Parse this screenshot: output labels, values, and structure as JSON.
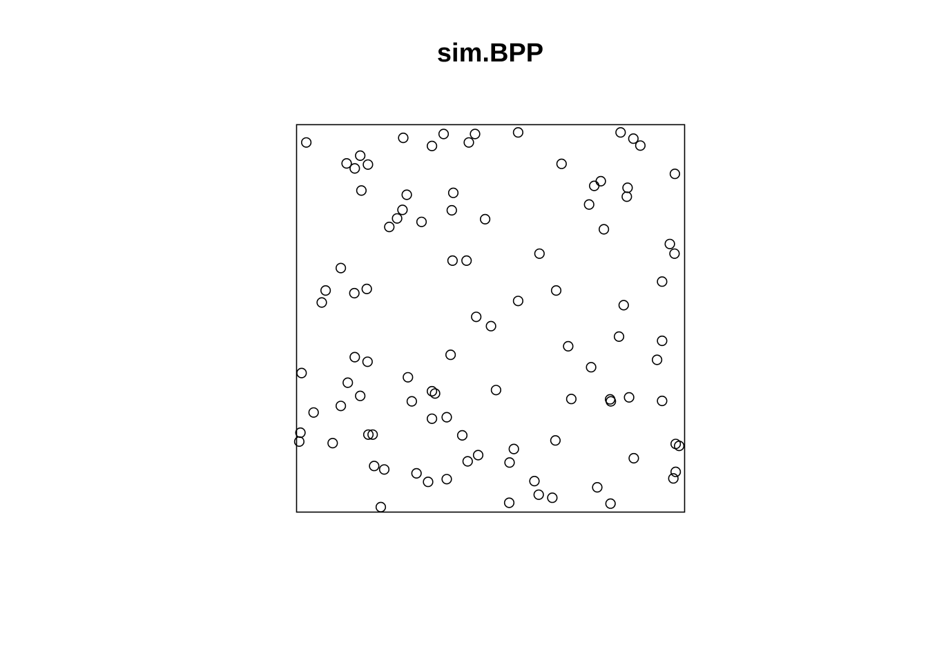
{
  "chart_data": {
    "type": "scatter",
    "title": "sim.BPP",
    "xlabel": "",
    "ylabel": "",
    "xlim": [
      0,
      1
    ],
    "ylim": [
      0,
      1
    ],
    "grid": false,
    "axes": false,
    "marker": "open-circle",
    "points": [
      [
        0.025,
        0.954
      ],
      [
        0.275,
        0.966
      ],
      [
        0.349,
        0.945
      ],
      [
        0.379,
        0.976
      ],
      [
        0.444,
        0.954
      ],
      [
        0.46,
        0.976
      ],
      [
        0.571,
        0.98
      ],
      [
        0.835,
        0.98
      ],
      [
        0.868,
        0.964
      ],
      [
        0.886,
        0.946
      ],
      [
        0.129,
        0.9
      ],
      [
        0.15,
        0.887
      ],
      [
        0.164,
        0.92
      ],
      [
        0.184,
        0.897
      ],
      [
        0.167,
        0.83
      ],
      [
        0.284,
        0.819
      ],
      [
        0.404,
        0.824
      ],
      [
        0.273,
        0.78
      ],
      [
        0.239,
        0.736
      ],
      [
        0.259,
        0.758
      ],
      [
        0.322,
        0.749
      ],
      [
        0.4,
        0.779
      ],
      [
        0.486,
        0.756
      ],
      [
        0.683,
        0.899
      ],
      [
        0.754,
        0.794
      ],
      [
        0.767,
        0.842
      ],
      [
        0.784,
        0.854
      ],
      [
        0.792,
        0.73
      ],
      [
        0.853,
        0.837
      ],
      [
        0.851,
        0.814
      ],
      [
        0.975,
        0.873
      ],
      [
        0.962,
        0.692
      ],
      [
        0.974,
        0.667
      ],
      [
        0.942,
        0.595
      ],
      [
        0.114,
        0.63
      ],
      [
        0.075,
        0.572
      ],
      [
        0.065,
        0.541
      ],
      [
        0.149,
        0.565
      ],
      [
        0.181,
        0.576
      ],
      [
        0.402,
        0.649
      ],
      [
        0.438,
        0.649
      ],
      [
        0.626,
        0.667
      ],
      [
        0.669,
        0.572
      ],
      [
        0.843,
        0.534
      ],
      [
        0.571,
        0.545
      ],
      [
        0.463,
        0.504
      ],
      [
        0.501,
        0.48
      ],
      [
        0.831,
        0.453
      ],
      [
        0.942,
        0.442
      ],
      [
        0.929,
        0.393
      ],
      [
        0.7,
        0.428
      ],
      [
        0.759,
        0.374
      ],
      [
        0.397,
        0.406
      ],
      [
        0.013,
        0.359
      ],
      [
        0.15,
        0.4
      ],
      [
        0.183,
        0.388
      ],
      [
        0.132,
        0.334
      ],
      [
        0.287,
        0.348
      ],
      [
        0.164,
        0.3
      ],
      [
        0.114,
        0.274
      ],
      [
        0.044,
        0.257
      ],
      [
        0.297,
        0.286
      ],
      [
        0.349,
        0.312
      ],
      [
        0.357,
        0.306
      ],
      [
        0.514,
        0.315
      ],
      [
        0.708,
        0.292
      ],
      [
        0.808,
        0.291
      ],
      [
        0.81,
        0.286
      ],
      [
        0.857,
        0.296
      ],
      [
        0.942,
        0.287
      ],
      [
        0.349,
        0.241
      ],
      [
        0.387,
        0.245
      ],
      [
        0.427,
        0.198
      ],
      [
        0.01,
        0.205
      ],
      [
        0.007,
        0.182
      ],
      [
        0.093,
        0.178
      ],
      [
        0.185,
        0.2
      ],
      [
        0.196,
        0.2
      ],
      [
        0.2,
        0.119
      ],
      [
        0.226,
        0.11
      ],
      [
        0.309,
        0.1
      ],
      [
        0.339,
        0.078
      ],
      [
        0.387,
        0.085
      ],
      [
        0.441,
        0.131
      ],
      [
        0.468,
        0.147
      ],
      [
        0.56,
        0.163
      ],
      [
        0.549,
        0.128
      ],
      [
        0.667,
        0.185
      ],
      [
        0.775,
        0.064
      ],
      [
        0.613,
        0.08
      ],
      [
        0.624,
        0.045
      ],
      [
        0.659,
        0.037
      ],
      [
        0.548,
        0.024
      ],
      [
        0.809,
        0.022
      ],
      [
        0.217,
        0.013
      ],
      [
        0.869,
        0.139
      ],
      [
        0.977,
        0.176
      ],
      [
        0.986,
        0.171
      ],
      [
        0.977,
        0.104
      ],
      [
        0.971,
        0.087
      ]
    ]
  }
}
